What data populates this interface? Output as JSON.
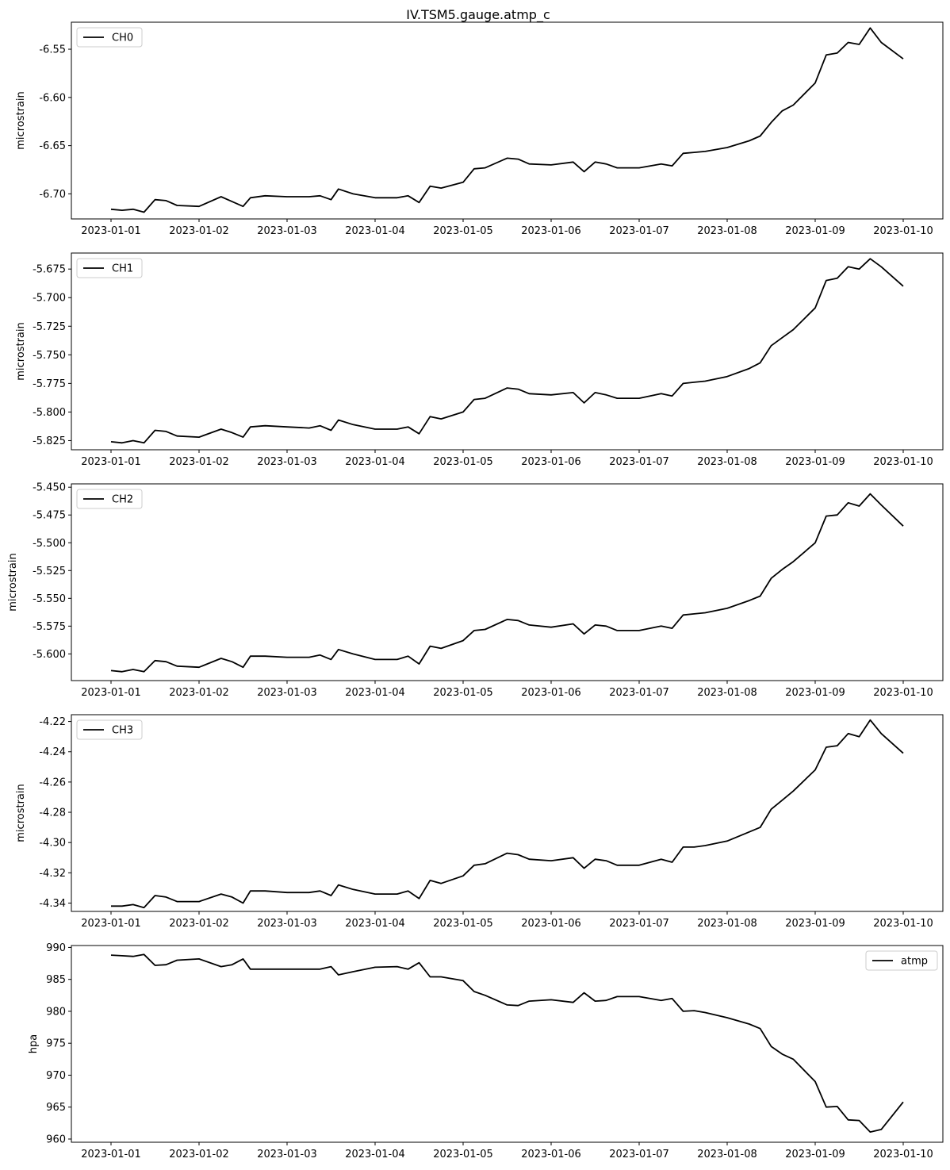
{
  "chart_data": [
    {
      "type": "line",
      "title": "IV.TSM5.gauge.atmp_c",
      "ylabel": "microstrain",
      "xlabel": "",
      "xlim": [
        "2023-01-01",
        "2023-01-10"
      ],
      "ylim": [
        -6.726,
        -6.522
      ],
      "yticks": [
        "-6.70",
        "-6.65",
        "-6.60",
        "-6.55"
      ],
      "xticks": [
        "2023-01-01",
        "2023-01-02",
        "2023-01-03",
        "2023-01-04",
        "2023-01-05",
        "2023-01-06",
        "2023-01-07",
        "2023-01-08",
        "2023-01-09",
        "2023-01-10"
      ],
      "legend": "upper left",
      "series": [
        {
          "name": "CH0",
          "color": "#000000",
          "x": [
            "2023-01-01",
            "2023-01-01 03:00",
            "2023-01-01 06:00",
            "2023-01-01 09:00",
            "2023-01-01 12:00",
            "2023-01-01 15:00",
            "2023-01-01 18:00",
            "2023-01-02 00:00",
            "2023-01-02 06:00",
            "2023-01-02 09:00",
            "2023-01-02 12:00",
            "2023-01-02 14:00",
            "2023-01-02 18:00",
            "2023-01-03 00:00",
            "2023-01-03 06:00",
            "2023-01-03 09:00",
            "2023-01-03 12:00",
            "2023-01-03 14:00",
            "2023-01-03 18:00",
            "2023-01-04 00:00",
            "2023-01-04 06:00",
            "2023-01-04 09:00",
            "2023-01-04 12:00",
            "2023-01-04 15:00",
            "2023-01-04 18:00",
            "2023-01-05 00:00",
            "2023-01-05 03:00",
            "2023-01-05 06:00",
            "2023-01-05 12:00",
            "2023-01-05 15:00",
            "2023-01-05 18:00",
            "2023-01-06 00:00",
            "2023-01-06 06:00",
            "2023-01-06 09:00",
            "2023-01-06 12:00",
            "2023-01-06 15:00",
            "2023-01-06 18:00",
            "2023-01-07 00:00",
            "2023-01-07 06:00",
            "2023-01-07 09:00",
            "2023-01-07 12:00",
            "2023-01-07 15:00",
            "2023-01-07 18:00",
            "2023-01-08 00:00",
            "2023-01-08 06:00",
            "2023-01-08 09:00",
            "2023-01-08 12:00",
            "2023-01-08 15:00",
            "2023-01-08 18:00",
            "2023-01-09 00:00",
            "2023-01-09 03:00",
            "2023-01-09 06:00",
            "2023-01-09 09:00",
            "2023-01-09 12:00",
            "2023-01-09 15:00",
            "2023-01-09 18:00",
            "2023-01-10 00:00"
          ],
          "y": [
            -6.716,
            -6.717,
            -6.716,
            -6.719,
            -6.706,
            -6.707,
            -6.712,
            -6.713,
            -6.703,
            -6.708,
            -6.713,
            -6.704,
            -6.702,
            -6.703,
            -6.703,
            -6.702,
            -6.706,
            -6.695,
            -6.7,
            -6.704,
            -6.704,
            -6.702,
            -6.709,
            -6.692,
            -6.694,
            -6.688,
            -6.674,
            -6.673,
            -6.663,
            -6.664,
            -6.669,
            -6.67,
            -6.667,
            -6.677,
            -6.667,
            -6.669,
            -6.673,
            -6.673,
            -6.669,
            -6.671,
            -6.658,
            -6.657,
            -6.656,
            -6.652,
            -6.645,
            -6.64,
            -6.626,
            -6.614,
            -6.608,
            -6.585,
            -6.556,
            -6.554,
            -6.543,
            -6.545,
            -6.528,
            -6.543,
            -6.56
          ]
        }
      ]
    },
    {
      "type": "line",
      "ylabel": "microstrain",
      "xlabel": "",
      "xlim": [
        "2023-01-01",
        "2023-01-10"
      ],
      "ylim": [
        -5.833,
        -5.661
      ],
      "yticks": [
        "-5.825",
        "-5.800",
        "-5.775",
        "-5.750",
        "-5.725",
        "-5.700",
        "-5.675"
      ],
      "xticks": [
        "2023-01-01",
        "2023-01-02",
        "2023-01-03",
        "2023-01-04",
        "2023-01-05",
        "2023-01-06",
        "2023-01-07",
        "2023-01-08",
        "2023-01-09",
        "2023-01-10"
      ],
      "legend": "upper left",
      "series": [
        {
          "name": "CH1",
          "color": "#000000",
          "x": [
            "2023-01-01",
            "2023-01-01 03:00",
            "2023-01-01 06:00",
            "2023-01-01 09:00",
            "2023-01-01 12:00",
            "2023-01-01 15:00",
            "2023-01-01 18:00",
            "2023-01-02 00:00",
            "2023-01-02 06:00",
            "2023-01-02 09:00",
            "2023-01-02 12:00",
            "2023-01-02 14:00",
            "2023-01-02 18:00",
            "2023-01-03 00:00",
            "2023-01-03 06:00",
            "2023-01-03 09:00",
            "2023-01-03 12:00",
            "2023-01-03 14:00",
            "2023-01-03 18:00",
            "2023-01-04 00:00",
            "2023-01-04 06:00",
            "2023-01-04 09:00",
            "2023-01-04 12:00",
            "2023-01-04 15:00",
            "2023-01-04 18:00",
            "2023-01-05 00:00",
            "2023-01-05 03:00",
            "2023-01-05 06:00",
            "2023-01-05 12:00",
            "2023-01-05 15:00",
            "2023-01-05 18:00",
            "2023-01-06 00:00",
            "2023-01-06 06:00",
            "2023-01-06 09:00",
            "2023-01-06 12:00",
            "2023-01-06 15:00",
            "2023-01-06 18:00",
            "2023-01-07 00:00",
            "2023-01-07 06:00",
            "2023-01-07 09:00",
            "2023-01-07 12:00",
            "2023-01-07 15:00",
            "2023-01-07 18:00",
            "2023-01-08 00:00",
            "2023-01-08 06:00",
            "2023-01-08 09:00",
            "2023-01-08 12:00",
            "2023-01-08 15:00",
            "2023-01-08 18:00",
            "2023-01-09 00:00",
            "2023-01-09 03:00",
            "2023-01-09 06:00",
            "2023-01-09 09:00",
            "2023-01-09 12:00",
            "2023-01-09 15:00",
            "2023-01-09 18:00",
            "2023-01-10 00:00"
          ],
          "y": [
            -5.826,
            -5.827,
            -5.825,
            -5.827,
            -5.816,
            -5.817,
            -5.821,
            -5.822,
            -5.815,
            -5.818,
            -5.822,
            -5.813,
            -5.812,
            -5.813,
            -5.814,
            -5.812,
            -5.816,
            -5.807,
            -5.811,
            -5.815,
            -5.815,
            -5.813,
            -5.819,
            -5.804,
            -5.806,
            -5.8,
            -5.789,
            -5.788,
            -5.779,
            -5.78,
            -5.784,
            -5.785,
            -5.783,
            -5.792,
            -5.783,
            -5.785,
            -5.788,
            -5.788,
            -5.784,
            -5.786,
            -5.775,
            -5.774,
            -5.773,
            -5.769,
            -5.762,
            -5.757,
            -5.742,
            -5.735,
            -5.728,
            -5.709,
            -5.685,
            -5.683,
            -5.673,
            -5.675,
            -5.666,
            -5.673,
            -5.69
          ]
        }
      ]
    },
    {
      "type": "line",
      "ylabel": "microstrain",
      "xlabel": "",
      "xlim": [
        "2023-01-01",
        "2023-01-10"
      ],
      "ylim": [
        -5.624,
        -5.447
      ],
      "yticks": [
        "-5.600",
        "-5.575",
        "-5.550",
        "-5.525",
        "-5.500",
        "-5.475",
        "-5.450"
      ],
      "xticks": [
        "2023-01-01",
        "2023-01-02",
        "2023-01-03",
        "2023-01-04",
        "2023-01-05",
        "2023-01-06",
        "2023-01-07",
        "2023-01-08",
        "2023-01-09",
        "2023-01-10"
      ],
      "legend": "upper left",
      "series": [
        {
          "name": "CH2",
          "color": "#000000",
          "x": [
            "2023-01-01",
            "2023-01-01 03:00",
            "2023-01-01 06:00",
            "2023-01-01 09:00",
            "2023-01-01 12:00",
            "2023-01-01 15:00",
            "2023-01-01 18:00",
            "2023-01-02 00:00",
            "2023-01-02 06:00",
            "2023-01-02 09:00",
            "2023-01-02 12:00",
            "2023-01-02 14:00",
            "2023-01-02 18:00",
            "2023-01-03 00:00",
            "2023-01-03 06:00",
            "2023-01-03 09:00",
            "2023-01-03 12:00",
            "2023-01-03 14:00",
            "2023-01-03 18:00",
            "2023-01-04 00:00",
            "2023-01-04 06:00",
            "2023-01-04 09:00",
            "2023-01-04 12:00",
            "2023-01-04 15:00",
            "2023-01-04 18:00",
            "2023-01-05 00:00",
            "2023-01-05 03:00",
            "2023-01-05 06:00",
            "2023-01-05 12:00",
            "2023-01-05 15:00",
            "2023-01-05 18:00",
            "2023-01-06 00:00",
            "2023-01-06 06:00",
            "2023-01-06 09:00",
            "2023-01-06 12:00",
            "2023-01-06 15:00",
            "2023-01-06 18:00",
            "2023-01-07 00:00",
            "2023-01-07 06:00",
            "2023-01-07 09:00",
            "2023-01-07 12:00",
            "2023-01-07 15:00",
            "2023-01-07 18:00",
            "2023-01-08 00:00",
            "2023-01-08 06:00",
            "2023-01-08 09:00",
            "2023-01-08 12:00",
            "2023-01-08 15:00",
            "2023-01-08 18:00",
            "2023-01-09 00:00",
            "2023-01-09 03:00",
            "2023-01-09 06:00",
            "2023-01-09 09:00",
            "2023-01-09 12:00",
            "2023-01-09 15:00",
            "2023-01-09 18:00",
            "2023-01-10 00:00"
          ],
          "y": [
            -5.615,
            -5.616,
            -5.614,
            -5.616,
            -5.606,
            -5.607,
            -5.611,
            -5.612,
            -5.604,
            -5.607,
            -5.612,
            -5.602,
            -5.602,
            -5.603,
            -5.603,
            -5.601,
            -5.605,
            -5.596,
            -5.6,
            -5.605,
            -5.605,
            -5.602,
            -5.609,
            -5.593,
            -5.595,
            -5.588,
            -5.579,
            -5.578,
            -5.569,
            -5.57,
            -5.574,
            -5.576,
            -5.573,
            -5.582,
            -5.574,
            -5.575,
            -5.579,
            -5.579,
            -5.575,
            -5.577,
            -5.565,
            -5.564,
            -5.563,
            -5.559,
            -5.552,
            -5.548,
            -5.532,
            -5.524,
            -5.517,
            -5.5,
            -5.476,
            -5.475,
            -5.464,
            -5.467,
            -5.456,
            -5.466,
            -5.485
          ]
        }
      ]
    },
    {
      "type": "line",
      "ylabel": "microstrain",
      "xlabel": "",
      "xlim": [
        "2023-01-01",
        "2023-01-10"
      ],
      "ylim": [
        -4.3455,
        -4.2155
      ],
      "yticks": [
        "-4.34",
        "-4.32",
        "-4.30",
        "-4.28",
        "-4.26",
        "-4.24",
        "-4.22"
      ],
      "xticks": [
        "2023-01-01",
        "2023-01-02",
        "2023-01-03",
        "2023-01-04",
        "2023-01-05",
        "2023-01-06",
        "2023-01-07",
        "2023-01-08",
        "2023-01-09",
        "2023-01-10"
      ],
      "legend": "upper left",
      "series": [
        {
          "name": "CH3",
          "color": "#000000",
          "x": [
            "2023-01-01",
            "2023-01-01 03:00",
            "2023-01-01 06:00",
            "2023-01-01 09:00",
            "2023-01-01 12:00",
            "2023-01-01 15:00",
            "2023-01-01 18:00",
            "2023-01-02 00:00",
            "2023-01-02 06:00",
            "2023-01-02 09:00",
            "2023-01-02 12:00",
            "2023-01-02 14:00",
            "2023-01-02 18:00",
            "2023-01-03 00:00",
            "2023-01-03 06:00",
            "2023-01-03 09:00",
            "2023-01-03 12:00",
            "2023-01-03 14:00",
            "2023-01-03 18:00",
            "2023-01-04 00:00",
            "2023-01-04 06:00",
            "2023-01-04 09:00",
            "2023-01-04 12:00",
            "2023-01-04 15:00",
            "2023-01-04 18:00",
            "2023-01-05 00:00",
            "2023-01-05 03:00",
            "2023-01-05 06:00",
            "2023-01-05 12:00",
            "2023-01-05 15:00",
            "2023-01-05 18:00",
            "2023-01-06 00:00",
            "2023-01-06 06:00",
            "2023-01-06 09:00",
            "2023-01-06 12:00",
            "2023-01-06 15:00",
            "2023-01-06 18:00",
            "2023-01-07 00:00",
            "2023-01-07 06:00",
            "2023-01-07 09:00",
            "2023-01-07 12:00",
            "2023-01-07 15:00",
            "2023-01-07 18:00",
            "2023-01-08 00:00",
            "2023-01-08 06:00",
            "2023-01-08 09:00",
            "2023-01-08 12:00",
            "2023-01-08 15:00",
            "2023-01-08 18:00",
            "2023-01-09 00:00",
            "2023-01-09 03:00",
            "2023-01-09 06:00",
            "2023-01-09 09:00",
            "2023-01-09 12:00",
            "2023-01-09 15:00",
            "2023-01-09 18:00",
            "2023-01-10 00:00"
          ],
          "y": [
            -4.342,
            -4.342,
            -4.341,
            -4.343,
            -4.335,
            -4.336,
            -4.339,
            -4.339,
            -4.334,
            -4.336,
            -4.34,
            -4.332,
            -4.332,
            -4.333,
            -4.333,
            -4.332,
            -4.335,
            -4.328,
            -4.331,
            -4.334,
            -4.334,
            -4.332,
            -4.337,
            -4.325,
            -4.327,
            -4.322,
            -4.315,
            -4.314,
            -4.307,
            -4.308,
            -4.311,
            -4.312,
            -4.31,
            -4.317,
            -4.311,
            -4.312,
            -4.315,
            -4.315,
            -4.311,
            -4.313,
            -4.303,
            -4.303,
            -4.302,
            -4.299,
            -4.293,
            -4.29,
            -4.278,
            -4.272,
            -4.266,
            -4.252,
            -4.237,
            -4.236,
            -4.228,
            -4.23,
            -4.219,
            -4.228,
            -4.241
          ]
        }
      ]
    },
    {
      "type": "line",
      "ylabel": "hpa",
      "xlabel": "",
      "xlim": [
        "2023-01-01",
        "2023-01-10"
      ],
      "ylim": [
        959.5,
        990.3
      ],
      "yticks": [
        "960",
        "965",
        "970",
        "975",
        "980",
        "985",
        "990"
      ],
      "xticks": [
        "2023-01-01",
        "2023-01-02",
        "2023-01-03",
        "2023-01-04",
        "2023-01-05",
        "2023-01-06",
        "2023-01-07",
        "2023-01-08",
        "2023-01-09",
        "2023-01-10"
      ],
      "legend": "upper right",
      "series": [
        {
          "name": "atmp",
          "color": "#000000",
          "x": [
            "2023-01-01",
            "2023-01-01 03:00",
            "2023-01-01 06:00",
            "2023-01-01 09:00",
            "2023-01-01 12:00",
            "2023-01-01 15:00",
            "2023-01-01 18:00",
            "2023-01-02 00:00",
            "2023-01-02 06:00",
            "2023-01-02 09:00",
            "2023-01-02 12:00",
            "2023-01-02 14:00",
            "2023-01-02 18:00",
            "2023-01-03 00:00",
            "2023-01-03 06:00",
            "2023-01-03 09:00",
            "2023-01-03 12:00",
            "2023-01-03 14:00",
            "2023-01-03 18:00",
            "2023-01-04 00:00",
            "2023-01-04 06:00",
            "2023-01-04 09:00",
            "2023-01-04 12:00",
            "2023-01-04 15:00",
            "2023-01-04 18:00",
            "2023-01-05 00:00",
            "2023-01-05 03:00",
            "2023-01-05 06:00",
            "2023-01-05 12:00",
            "2023-01-05 15:00",
            "2023-01-05 18:00",
            "2023-01-06 00:00",
            "2023-01-06 06:00",
            "2023-01-06 09:00",
            "2023-01-06 12:00",
            "2023-01-06 15:00",
            "2023-01-06 18:00",
            "2023-01-07 00:00",
            "2023-01-07 06:00",
            "2023-01-07 09:00",
            "2023-01-07 12:00",
            "2023-01-07 15:00",
            "2023-01-07 18:00",
            "2023-01-08 00:00",
            "2023-01-08 06:00",
            "2023-01-08 09:00",
            "2023-01-08 12:00",
            "2023-01-08 15:00",
            "2023-01-08 18:00",
            "2023-01-09 00:00",
            "2023-01-09 03:00",
            "2023-01-09 06:00",
            "2023-01-09 09:00",
            "2023-01-09 12:00",
            "2023-01-09 15:00",
            "2023-01-09 18:00",
            "2023-01-10 00:00"
          ],
          "y": [
            988.8,
            988.7,
            988.6,
            988.9,
            987.2,
            987.3,
            988.0,
            988.2,
            987.0,
            987.3,
            988.2,
            986.6,
            986.6,
            986.6,
            986.6,
            986.6,
            987.0,
            985.7,
            986.2,
            986.9,
            987.0,
            986.6,
            987.6,
            985.4,
            985.4,
            984.8,
            983.1,
            982.5,
            981.0,
            980.9,
            981.6,
            981.8,
            981.4,
            982.9,
            981.6,
            981.7,
            982.3,
            982.3,
            981.7,
            982.0,
            980.0,
            980.1,
            979.8,
            979.0,
            978.0,
            977.3,
            974.5,
            973.3,
            972.5,
            969.0,
            965.0,
            965.1,
            963.0,
            962.9,
            961.1,
            961.5,
            965.8
          ]
        }
      ]
    }
  ]
}
